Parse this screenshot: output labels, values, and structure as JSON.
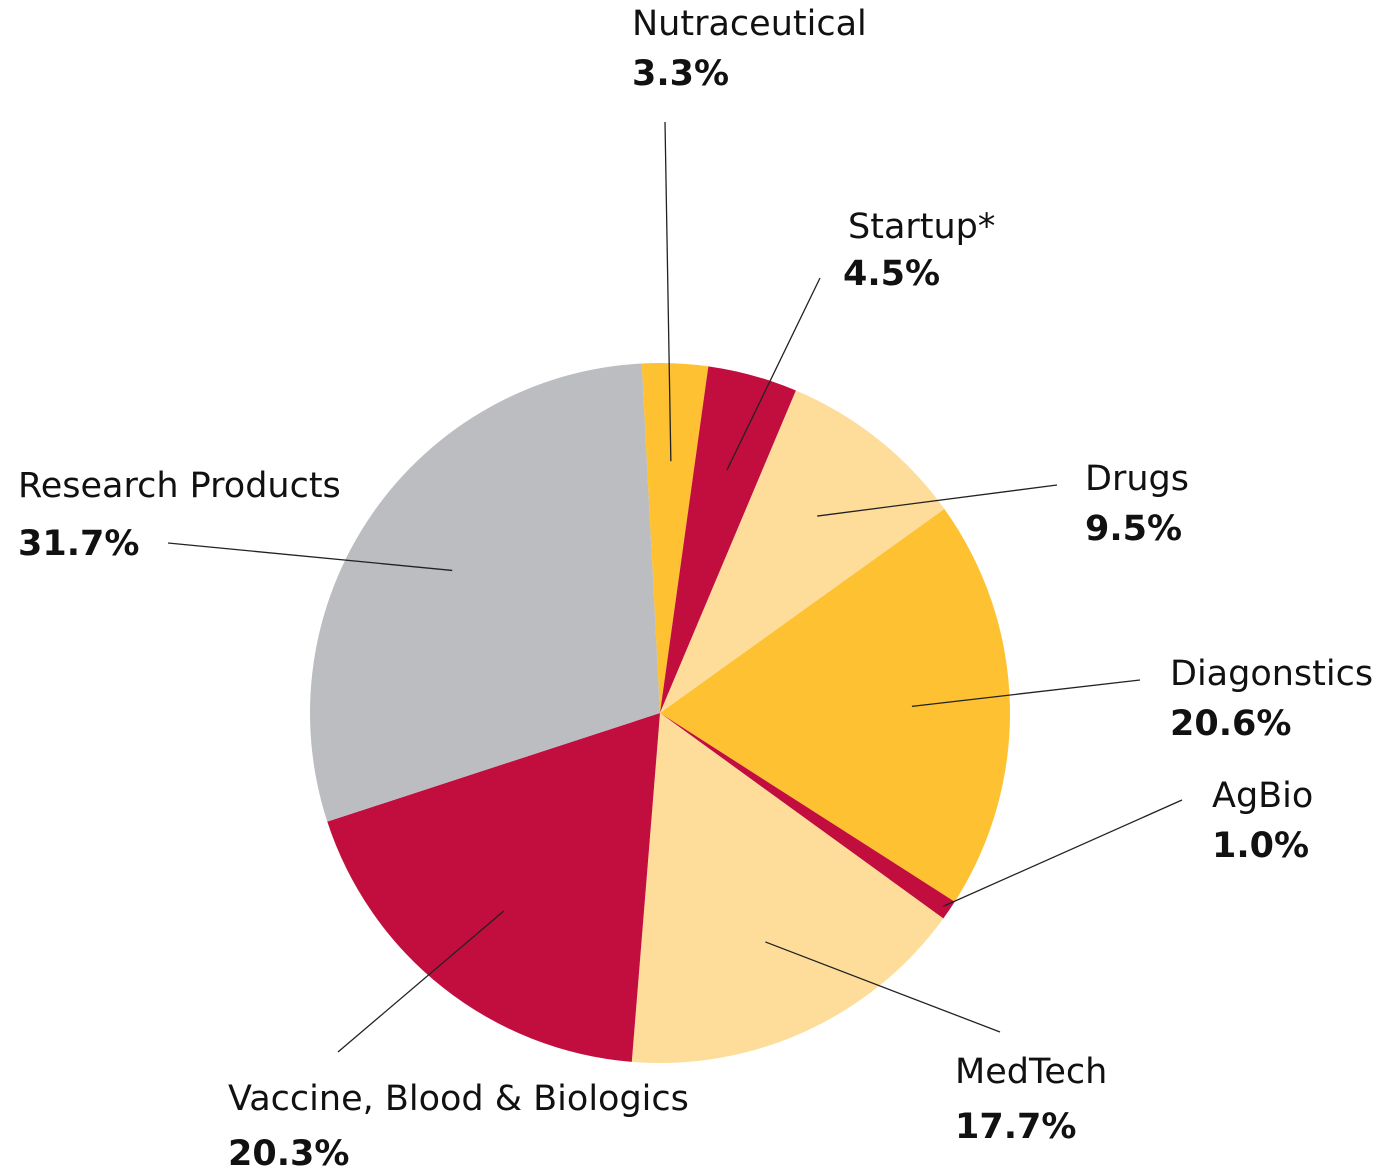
{
  "chart_data": {
    "type": "pie",
    "categories": [
      "Nutraceutical",
      "Startup*",
      "Drugs",
      "Diagonstics",
      "AgBio",
      "MedTech",
      "Vaccine, Blood & Biologics",
      "Research Products"
    ],
    "values": [
      3.3,
      4.5,
      9.5,
      20.6,
      1.0,
      17.7,
      20.3,
      31.7
    ],
    "value_labels": [
      "3.3%",
      "4.5%",
      "9.5%",
      "20.6%",
      "1.0%",
      "17.7%",
      "20.3%",
      "31.7%"
    ],
    "colors": [
      "#fdc132",
      "#c20e3e",
      "#fedd9a",
      "#fdc132",
      "#c20e3e",
      "#fedd9a",
      "#c20e3e",
      "#bcbdc0"
    ]
  }
}
